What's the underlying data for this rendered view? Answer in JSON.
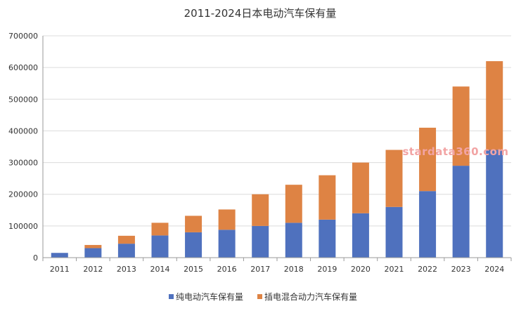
{
  "chart_data": {
    "type": "bar",
    "stacked": true,
    "title": "2011-2024日本电动汽车保有量",
    "categories": [
      "2011",
      "2012",
      "2013",
      "2014",
      "2015",
      "2016",
      "2017",
      "2018",
      "2019",
      "2020",
      "2021",
      "2022",
      "2023",
      "2024"
    ],
    "series": [
      {
        "name": "纯电动汽车保有量",
        "color": "#4f71be",
        "values": [
          15000,
          30000,
          44000,
          70000,
          80000,
          88000,
          100000,
          110000,
          120000,
          140000,
          160000,
          210000,
          290000,
          340000
        ]
      },
      {
        "name": "插电混合动力汽车保有量",
        "color": "#de8344",
        "values": [
          0,
          10000,
          25000,
          40000,
          52000,
          64000,
          100000,
          120000,
          140000,
          160000,
          180000,
          200000,
          250000,
          280000
        ]
      }
    ],
    "ylim": [
      0,
      700000
    ],
    "yticks": [
      0,
      100000,
      200000,
      300000,
      400000,
      500000,
      600000,
      700000
    ],
    "grid": true,
    "legend_position": "bottom-center",
    "watermark": "stardata360.com"
  }
}
